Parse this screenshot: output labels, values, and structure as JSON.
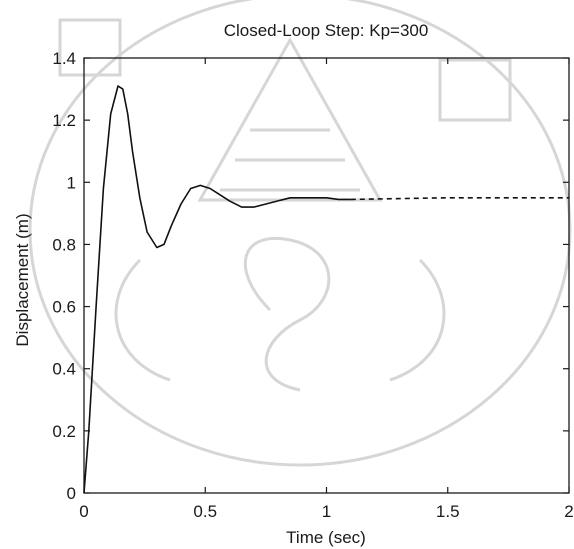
{
  "chart_data": {
    "type": "line",
    "title": "Closed-Loop Step: Kp=300",
    "xlabel": "Time (sec)",
    "ylabel": "Displacement (m)",
    "xlim": [
      0,
      2
    ],
    "ylim": [
      0,
      1.4
    ],
    "xticks": [
      0,
      0.5,
      1,
      1.5,
      2
    ],
    "xtick_labels": [
      "0",
      "0.5",
      "1",
      "1.5",
      "2"
    ],
    "yticks": [
      0,
      0.2,
      0.4,
      0.6,
      0.8,
      1,
      1.2,
      1.4
    ],
    "ytick_labels": [
      "0",
      "0.2",
      "0.4",
      "0.6",
      "0.8",
      "1",
      "1.2",
      "1.4"
    ],
    "grid": false,
    "series": [
      {
        "style": "solid",
        "x": [
          0,
          0.02,
          0.05,
          0.08,
          0.11,
          0.14,
          0.16,
          0.18,
          0.2,
          0.23,
          0.26,
          0.3,
          0.33,
          0.36,
          0.4,
          0.44,
          0.48,
          0.52,
          0.56,
          0.6,
          0.65,
          0.7,
          0.75,
          0.8,
          0.85,
          0.9,
          0.95,
          1.0,
          1.05,
          1.1
        ],
        "y": [
          0,
          0.2,
          0.6,
          0.98,
          1.22,
          1.31,
          1.3,
          1.22,
          1.1,
          0.95,
          0.84,
          0.79,
          0.8,
          0.86,
          0.93,
          0.98,
          0.99,
          0.98,
          0.96,
          0.94,
          0.92,
          0.92,
          0.93,
          0.94,
          0.95,
          0.95,
          0.95,
          0.95,
          0.945,
          0.945
        ]
      },
      {
        "style": "dashed",
        "x": [
          1.1,
          1.5,
          2.0
        ],
        "y": [
          0.945,
          0.95,
          0.95
        ]
      }
    ]
  }
}
